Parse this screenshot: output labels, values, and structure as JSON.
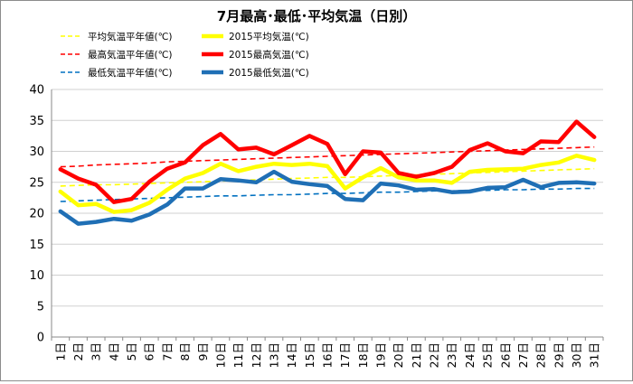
{
  "chart_data": {
    "type": "line",
    "title": "7月最高･最低･平均気温（日別）",
    "x_labels": [
      "1日",
      "2日",
      "3日",
      "4日",
      "5日",
      "6日",
      "7日",
      "8日",
      "9日",
      "10日",
      "11日",
      "12日",
      "13日",
      "14日",
      "15日",
      "16日",
      "17日",
      "18日",
      "19日",
      "20日",
      "21日",
      "22日",
      "23日",
      "24日",
      "25日",
      "26日",
      "27日",
      "28日",
      "29日",
      "30日",
      "31日"
    ],
    "ylim": [
      0,
      40
    ],
    "yticks": [
      "0",
      "5",
      "10",
      "15",
      "20",
      "25",
      "30",
      "35",
      "40"
    ],
    "grid": "horizontal",
    "legend_position": "top",
    "series": [
      {
        "name": "平均気温平年値(℃)",
        "color": "#ffff00",
        "style": "dashed",
        "values": [
          24.4,
          24.5,
          24.6,
          24.6,
          24.7,
          24.8,
          24.9,
          25.0,
          25.1,
          25.2,
          25.3,
          25.4,
          25.5,
          25.6,
          25.7,
          25.8,
          25.8,
          25.9,
          26.0,
          26.1,
          26.2,
          26.3,
          26.4,
          26.5,
          26.6,
          26.7,
          26.8,
          26.9,
          27.0,
          27.1,
          27.2
        ]
      },
      {
        "name": "2015平均気温(℃)",
        "color": "#ffff00",
        "style": "solid",
        "values": [
          23.5,
          21.3,
          21.5,
          20.2,
          20.5,
          21.7,
          23.8,
          25.6,
          26.5,
          28.0,
          26.8,
          27.5,
          28.0,
          27.8,
          28.0,
          27.6,
          24.0,
          25.8,
          27.3,
          25.8,
          25.3,
          25.3,
          24.9,
          26.7,
          27.0,
          27.1,
          27.2,
          27.8,
          28.2,
          29.3,
          28.6
        ]
      },
      {
        "name": "最高気温平年値(℃)",
        "color": "#ff0000",
        "style": "dashed",
        "values": [
          27.5,
          27.6,
          27.8,
          27.9,
          28.0,
          28.1,
          28.3,
          28.4,
          28.5,
          28.6,
          28.7,
          28.8,
          28.9,
          29.0,
          29.1,
          29.2,
          29.3,
          29.4,
          29.5,
          29.6,
          29.7,
          29.8,
          29.9,
          30.0,
          30.1,
          30.2,
          30.3,
          30.4,
          30.5,
          30.6,
          30.7
        ]
      },
      {
        "name": "2015最高気温(℃)",
        "color": "#ff0000",
        "style": "solid",
        "values": [
          27.1,
          25.6,
          24.6,
          21.8,
          22.3,
          25.1,
          27.2,
          28.2,
          31.0,
          32.8,
          30.3,
          30.6,
          29.5,
          31.0,
          32.5,
          31.2,
          26.3,
          30.0,
          29.8,
          26.5,
          25.9,
          26.5,
          27.5,
          30.2,
          31.3,
          30.0,
          29.7,
          31.6,
          31.5,
          34.8,
          32.3
        ]
      },
      {
        "name": "最低気温平年値(℃)",
        "color": "#0070c0",
        "style": "dashed",
        "values": [
          21.9,
          22.0,
          22.1,
          22.2,
          22.3,
          22.4,
          22.5,
          22.6,
          22.7,
          22.8,
          22.8,
          22.9,
          23.0,
          23.0,
          23.1,
          23.2,
          23.2,
          23.3,
          23.4,
          23.4,
          23.5,
          23.6,
          23.6,
          23.7,
          23.7,
          23.8,
          23.8,
          23.9,
          23.9,
          24.0,
          24.0
        ]
      },
      {
        "name": "2015最低気温(℃)",
        "color": "#1f6fb5",
        "style": "solid",
        "values": [
          20.3,
          18.3,
          18.6,
          19.1,
          18.8,
          19.8,
          21.4,
          24.0,
          24.0,
          25.5,
          25.3,
          25.0,
          26.7,
          25.1,
          24.7,
          24.4,
          22.3,
          22.1,
          24.8,
          24.5,
          23.8,
          23.9,
          23.4,
          23.5,
          24.1,
          24.2,
          25.4,
          24.2,
          24.9,
          25.0,
          24.8
        ]
      }
    ]
  }
}
